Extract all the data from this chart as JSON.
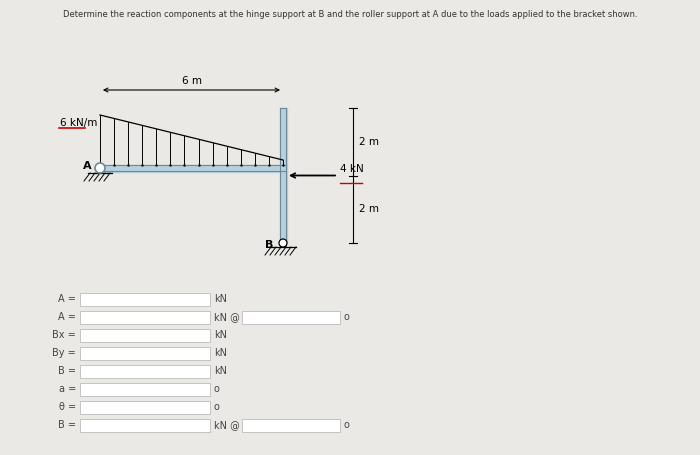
{
  "title": "Determine the reaction components at the hinge support at B and the roller support at A due to the loads applied to the bracket shown.",
  "bg_color": "#ebe9e5",
  "structure": {
    "dist_load_label": "6 kN/m",
    "point_load_label": "4 kN",
    "dim_6m_label": "6 m",
    "dim_2m_top_label": "2 m",
    "dim_2m_bot_label": "2 m",
    "label_A": "A",
    "label_B": "B",
    "beam_color": "#b8d0de",
    "beam_outline": "#6a8a9a",
    "underline_color": "#cc0000"
  },
  "form_rows": [
    {
      "label": "A =",
      "unit": "kN",
      "has_extra_box": false,
      "extra_unit": ""
    },
    {
      "label": "A =",
      "unit": "kN @",
      "has_extra_box": true,
      "extra_unit": "o"
    },
    {
      "label": "Bx =",
      "unit": "kN",
      "has_extra_box": false,
      "extra_unit": ""
    },
    {
      "label": "By =",
      "unit": "kN",
      "has_extra_box": false,
      "extra_unit": ""
    },
    {
      "label": "B =",
      "unit": "kN",
      "has_extra_box": false,
      "extra_unit": ""
    },
    {
      "label": "a =",
      "unit": "o",
      "has_extra_box": false,
      "extra_unit": ""
    },
    {
      "label": "θ =",
      "unit": "o",
      "has_extra_box": false,
      "extra_unit": ""
    },
    {
      "label": "B =",
      "unit": "kN @",
      "has_extra_box": true,
      "extra_unit": "o"
    }
  ]
}
